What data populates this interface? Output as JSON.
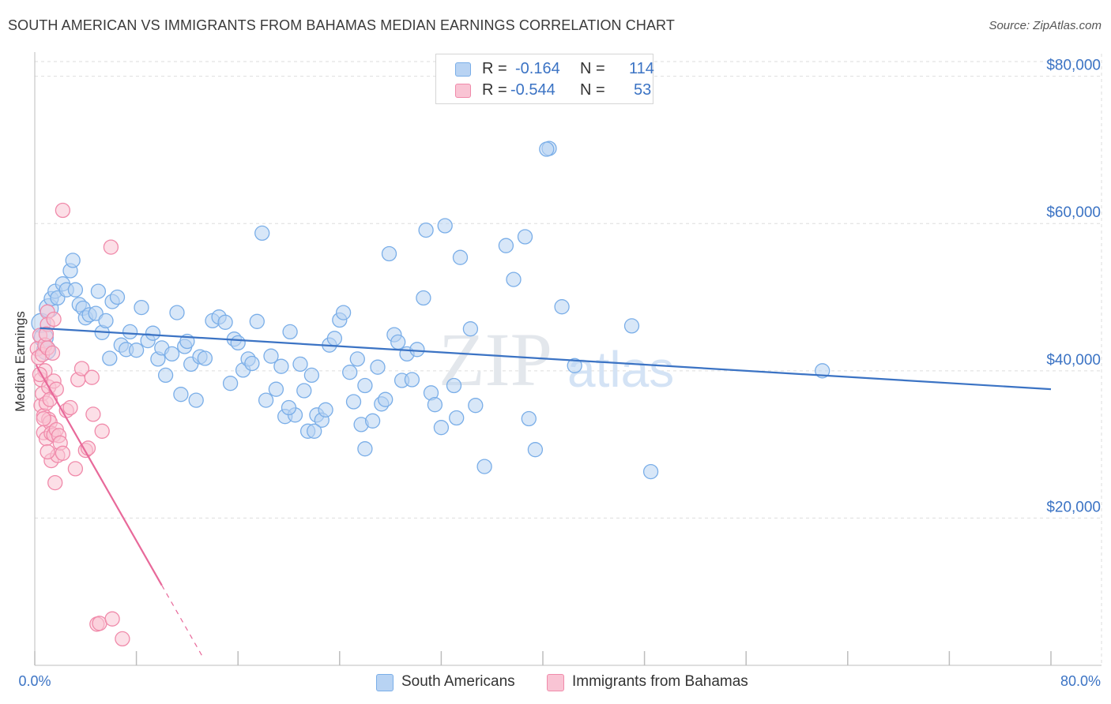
{
  "title": "SOUTH AMERICAN VS IMMIGRANTS FROM BAHAMAS MEDIAN EARNINGS CORRELATION CHART",
  "source": "Source: ZipAtlas.com",
  "watermark": {
    "zip": "ZIP",
    "atlas": "atlas"
  },
  "legend_stats": [
    {
      "r_label": "R =",
      "r_value": "-0.164",
      "n_label": "N =",
      "n_value": "114",
      "color": "#7aaee8",
      "fill": "#b8d3f3"
    },
    {
      "r_label": "R =",
      "r_value": "-0.544",
      "n_label": "N =",
      "n_value": "53",
      "color": "#f08aaa",
      "fill": "#f9c4d4"
    }
  ],
  "bottom_legend": [
    {
      "label": "South Americans",
      "fill": "#b8d3f3",
      "stroke": "#7aaee8"
    },
    {
      "label": "Immigrants from Bahamas",
      "fill": "#f9c4d4",
      "stroke": "#f08aaa"
    }
  ],
  "chart_data": {
    "type": "scatter",
    "title": "SOUTH AMERICAN VS IMMIGRANTS FROM BAHAMAS MEDIAN EARNINGS CORRELATION CHART",
    "xlabel": "",
    "ylabel": "Median Earnings",
    "xlim": [
      0,
      80
    ],
    "ylim": [
      0,
      82000
    ],
    "x_tick_labels": [
      "0.0%",
      "80.0%"
    ],
    "y_ticks": [
      {
        "value": 20000,
        "label": "$20,000"
      },
      {
        "value": 40000,
        "label": "$40,000"
      },
      {
        "value": 60000,
        "label": "$60,000"
      },
      {
        "value": 80000,
        "label": "$80,000"
      }
    ],
    "series": [
      {
        "name": "South Americans",
        "color": "#3b73c4",
        "fill": "#b8d3f3",
        "stroke": "#7aaee8",
        "trend": {
          "x0": 0.4,
          "y0": 45800,
          "x1": 80,
          "y1": 37500,
          "dashed_from_x": null
        },
        "points": [
          [
            0.5,
            46500
          ],
          [
            0.7,
            44500
          ],
          [
            0.9,
            42800
          ],
          [
            1.1,
            48500
          ],
          [
            1.3,
            49800
          ],
          [
            1.6,
            50800
          ],
          [
            1.8,
            49900
          ],
          [
            2.2,
            51800
          ],
          [
            2.5,
            51000
          ],
          [
            2.8,
            53600
          ],
          [
            3.0,
            55000
          ],
          [
            3.2,
            51000
          ],
          [
            3.5,
            49000
          ],
          [
            3.8,
            48500
          ],
          [
            4.0,
            47200
          ],
          [
            4.3,
            47600
          ],
          [
            4.8,
            47800
          ],
          [
            5.0,
            50800
          ],
          [
            5.3,
            45200
          ],
          [
            5.6,
            46800
          ],
          [
            5.9,
            41700
          ],
          [
            6.1,
            49400
          ],
          [
            6.5,
            50000
          ],
          [
            6.8,
            43500
          ],
          [
            7.2,
            42900
          ],
          [
            7.5,
            45300
          ],
          [
            8.0,
            42800
          ],
          [
            8.4,
            48600
          ],
          [
            8.9,
            44100
          ],
          [
            9.3,
            45100
          ],
          [
            9.7,
            41600
          ],
          [
            10.0,
            43100
          ],
          [
            10.3,
            39400
          ],
          [
            10.8,
            42300
          ],
          [
            11.2,
            47900
          ],
          [
            11.5,
            36800
          ],
          [
            11.8,
            43300
          ],
          [
            12.3,
            40900
          ],
          [
            12.7,
            36000
          ],
          [
            13.0,
            41900
          ],
          [
            13.4,
            41700
          ],
          [
            14.0,
            46800
          ],
          [
            14.5,
            47300
          ],
          [
            15.0,
            46600
          ],
          [
            15.4,
            38300
          ],
          [
            15.7,
            44300
          ],
          [
            16.0,
            43800
          ],
          [
            16.4,
            40100
          ],
          [
            16.8,
            41600
          ],
          [
            17.1,
            41000
          ],
          [
            17.5,
            46700
          ],
          [
            17.9,
            58700
          ],
          [
            18.2,
            36000
          ],
          [
            18.6,
            42000
          ],
          [
            19.0,
            37500
          ],
          [
            19.4,
            40600
          ],
          [
            19.7,
            33800
          ],
          [
            20.1,
            45300
          ],
          [
            20.5,
            34000
          ],
          [
            20.9,
            40900
          ],
          [
            21.2,
            37300
          ],
          [
            21.5,
            31800
          ],
          [
            21.8,
            39400
          ],
          [
            22.2,
            34000
          ],
          [
            22.6,
            33300
          ],
          [
            22.9,
            34700
          ],
          [
            23.2,
            43500
          ],
          [
            23.6,
            44400
          ],
          [
            24.0,
            46900
          ],
          [
            24.3,
            47900
          ],
          [
            24.8,
            39800
          ],
          [
            25.1,
            35800
          ],
          [
            25.4,
            41600
          ],
          [
            25.7,
            32700
          ],
          [
            26.0,
            29400
          ],
          [
            26.6,
            33200
          ],
          [
            27.0,
            40500
          ],
          [
            27.3,
            35500
          ],
          [
            27.6,
            36100
          ],
          [
            27.9,
            55900
          ],
          [
            28.3,
            44900
          ],
          [
            28.6,
            43900
          ],
          [
            28.9,
            38700
          ],
          [
            29.3,
            42300
          ],
          [
            29.7,
            38800
          ],
          [
            30.1,
            42900
          ],
          [
            30.6,
            49900
          ],
          [
            30.8,
            59100
          ],
          [
            31.2,
            37000
          ],
          [
            31.5,
            35400
          ],
          [
            32.0,
            32300
          ],
          [
            32.3,
            59700
          ],
          [
            33.2,
            33600
          ],
          [
            33.5,
            55400
          ],
          [
            34.3,
            45700
          ],
          [
            34.7,
            35300
          ],
          [
            35.4,
            27000
          ],
          [
            37.1,
            57000
          ],
          [
            37.7,
            52400
          ],
          [
            38.6,
            58200
          ],
          [
            38.9,
            33500
          ],
          [
            39.4,
            29300
          ],
          [
            40.5,
            70200
          ],
          [
            41.5,
            48700
          ],
          [
            42.5,
            40700
          ],
          [
            47.0,
            46100
          ],
          [
            48.5,
            26300
          ],
          [
            62.0,
            40000
          ],
          [
            40.3,
            70100
          ],
          [
            20.0,
            35000
          ],
          [
            22.0,
            31800
          ],
          [
            33.0,
            38000
          ],
          [
            12.0,
            44000
          ],
          [
            26.0,
            38000
          ]
        ]
      },
      {
        "name": "Immigrants from Bahamas",
        "color": "#e8699a",
        "fill": "#f9c4d4",
        "stroke": "#f08aaa",
        "trend": {
          "x0": 0.1,
          "y0": 40800,
          "x1": 13.3,
          "y1": 900,
          "dashed_from_x": 10.0
        },
        "points": [
          [
            0.2,
            43000
          ],
          [
            0.3,
            41800
          ],
          [
            0.4,
            44800
          ],
          [
            0.5,
            38800
          ],
          [
            0.5,
            35300
          ],
          [
            0.6,
            42200
          ],
          [
            0.6,
            36900
          ],
          [
            0.7,
            33900
          ],
          [
            0.7,
            31600
          ],
          [
            0.8,
            43500
          ],
          [
            0.8,
            40000
          ],
          [
            0.9,
            35600
          ],
          [
            0.9,
            30800
          ],
          [
            1.0,
            48000
          ],
          [
            1.0,
            46300
          ],
          [
            1.0,
            43100
          ],
          [
            1.1,
            37800
          ],
          [
            1.1,
            33400
          ],
          [
            1.2,
            36100
          ],
          [
            1.2,
            33000
          ],
          [
            1.3,
            31500
          ],
          [
            1.3,
            27800
          ],
          [
            1.4,
            42400
          ],
          [
            1.5,
            38600
          ],
          [
            1.5,
            31300
          ],
          [
            1.6,
            24800
          ],
          [
            1.7,
            37500
          ],
          [
            1.7,
            32000
          ],
          [
            1.8,
            28500
          ],
          [
            1.9,
            31200
          ],
          [
            2.0,
            30200
          ],
          [
            2.2,
            28800
          ],
          [
            2.5,
            34600
          ],
          [
            3.2,
            26700
          ],
          [
            3.4,
            38800
          ],
          [
            3.7,
            40300
          ],
          [
            4.0,
            29200
          ],
          [
            4.2,
            29500
          ],
          [
            4.5,
            39100
          ],
          [
            4.6,
            34100
          ],
          [
            4.9,
            5600
          ],
          [
            5.1,
            5700
          ],
          [
            5.3,
            31800
          ],
          [
            6.0,
            56800
          ],
          [
            6.1,
            6300
          ],
          [
            6.9,
            3600
          ],
          [
            2.2,
            61800
          ],
          [
            0.9,
            45000
          ],
          [
            1.5,
            47000
          ],
          [
            0.4,
            39500
          ],
          [
            1.0,
            29000
          ],
          [
            2.8,
            35000
          ],
          [
            0.7,
            33500
          ]
        ]
      }
    ]
  }
}
